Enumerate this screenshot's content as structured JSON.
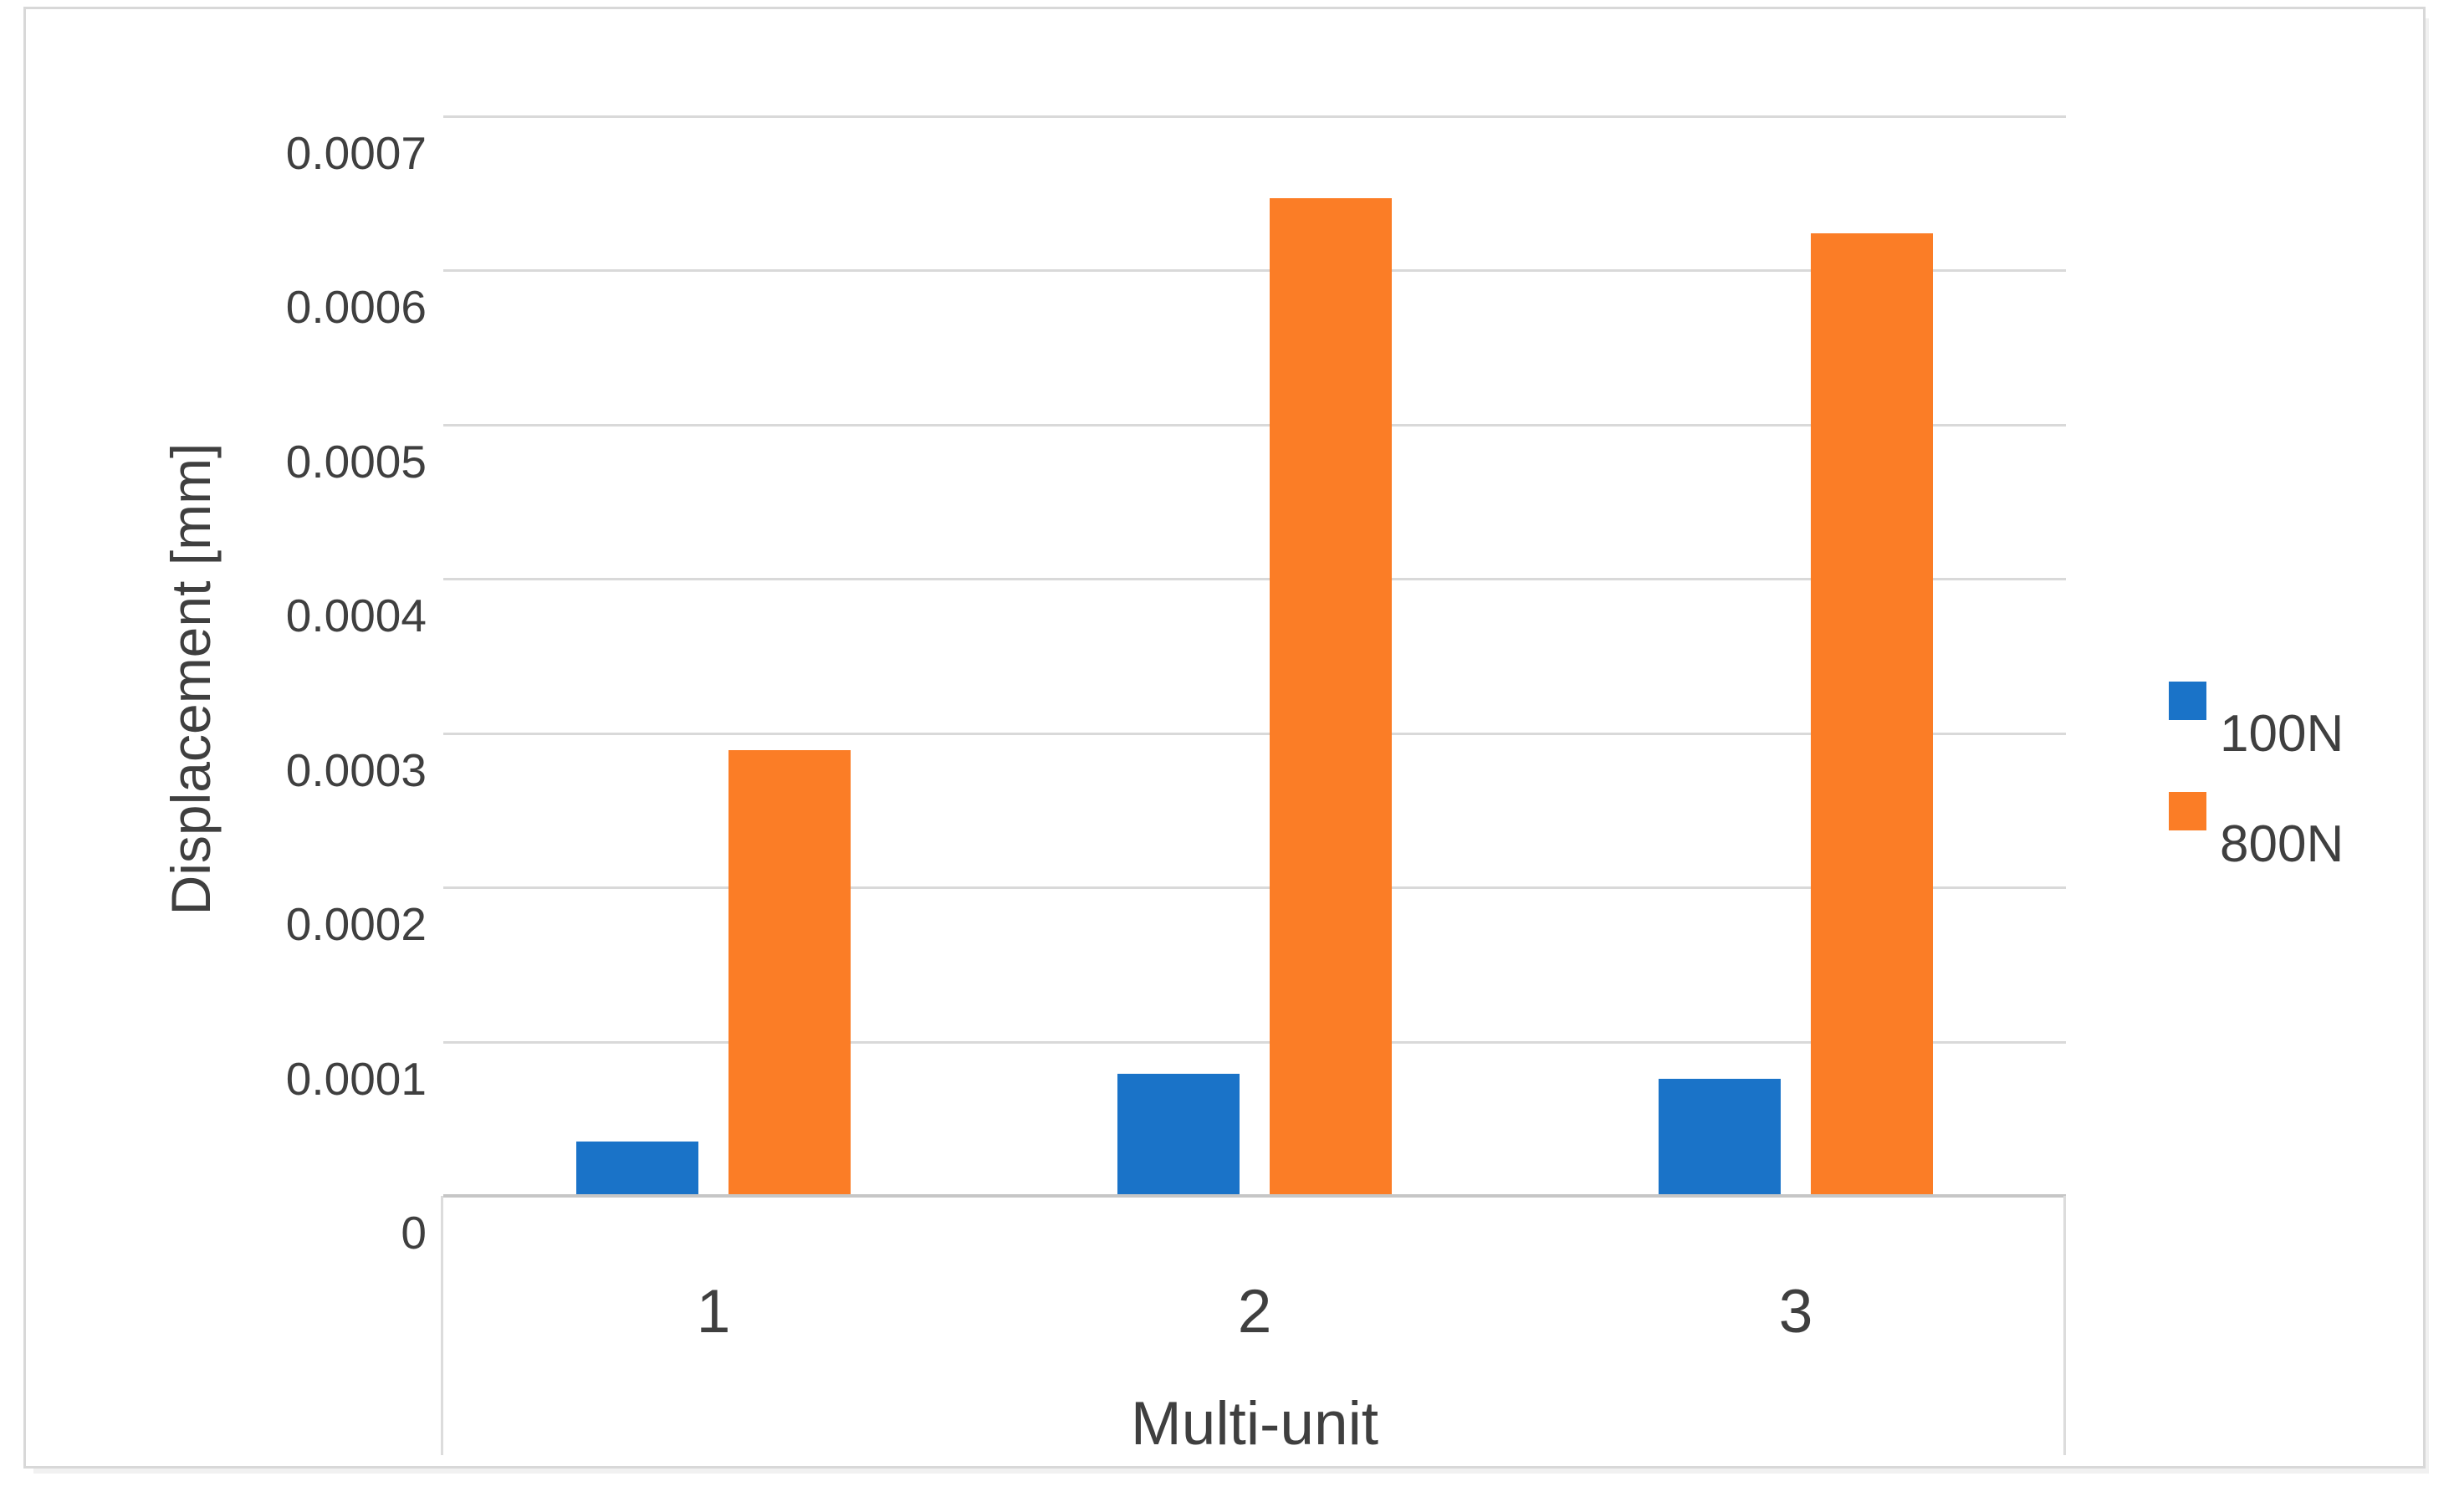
{
  "figure": {
    "background": "#ffffff",
    "border_color": "#d8d8d8"
  },
  "chart_data": {
    "type": "bar",
    "title": "",
    "xlabel": "Multi-unit",
    "ylabel": "Displacement [mm]",
    "categories": [
      "1",
      "2",
      "3"
    ],
    "series": [
      {
        "name": "100N",
        "color": "#1a73c8",
        "values": [
          3.5e-05,
          7.9e-05,
          7.6e-05
        ]
      },
      {
        "name": "800N",
        "color": "#fb7d26",
        "values": [
          0.000289,
          0.000647,
          0.000624
        ]
      }
    ],
    "ylim": [
      0,
      0.0007
    ],
    "ytick_interval": 0.0001,
    "yticks": [
      "0",
      "0.0001",
      "0.0002",
      "0.0003",
      "0.0004",
      "0.0005",
      "0.0006",
      "0.0007"
    ],
    "grid": "horizontal",
    "gridline_color": "#d9d9d9",
    "axis_line_color": "#c6c6c6",
    "text_color": "#3f3f3f",
    "legend_position": "right",
    "legend": [
      "100N",
      "800N"
    ]
  }
}
